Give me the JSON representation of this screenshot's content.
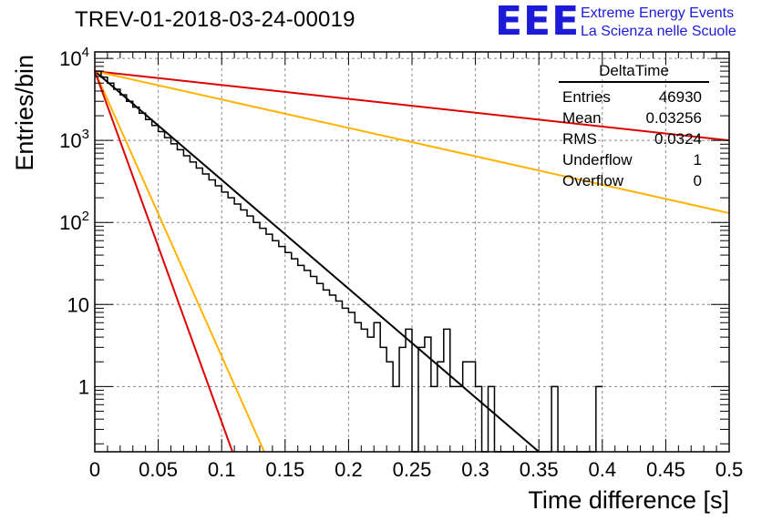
{
  "header": {
    "title": "TREV-01-2018-03-24-00019",
    "logo_text": "EEE",
    "logo_line1": "Extreme Energy Events",
    "logo_line2": "La Scienza nelle Scuole",
    "logo_color": "#1b1bd8"
  },
  "stats": {
    "name": "DeltaTime",
    "rows": [
      {
        "label": "Entries",
        "value": "46930"
      },
      {
        "label": "Mean",
        "value": "0.03256"
      },
      {
        "label": "RMS",
        "value": "0.0324"
      },
      {
        "label": "Underflow",
        "value": "1"
      },
      {
        "label": "Overflow",
        "value": "0"
      }
    ]
  },
  "chart_data": {
    "type": "line",
    "xlabel": "Time difference [s]",
    "ylabel": "Entries/bin",
    "xlim": [
      0,
      0.5
    ],
    "ylim": [
      0.16,
      12000
    ],
    "y_scale": "log",
    "grid": true,
    "x_ticks": [
      "0",
      "0.05",
      "0.1",
      "0.15",
      "0.2",
      "0.25",
      "0.3",
      "0.35",
      "0.4",
      "0.45",
      "0.5"
    ],
    "y_ticks": [
      {
        "value": 1,
        "label": "1"
      },
      {
        "value": 10,
        "label": "10"
      },
      {
        "value": 100,
        "label": "10^2"
      },
      {
        "value": 1000,
        "label": "10^3"
      },
      {
        "value": 10000,
        "label": "10^4"
      }
    ],
    "histogram": {
      "color": "#000000",
      "bin_width": 0.005,
      "values": [
        7000,
        5900,
        5000,
        4200,
        3600,
        3000,
        2550,
        2150,
        1800,
        1520,
        1280,
        1080,
        910,
        770,
        650,
        545,
        460,
        390,
        330,
        280,
        235,
        200,
        168,
        142,
        120,
        100,
        85,
        72,
        60,
        51,
        43,
        36,
        30,
        26,
        22,
        18,
        15,
        13,
        11,
        9,
        8,
        6,
        5,
        4,
        6,
        3,
        2,
        1,
        3,
        5,
        0,
        3,
        4,
        1,
        2,
        5,
        1,
        1,
        2,
        2,
        1,
        0,
        1,
        0,
        0,
        0,
        0,
        0,
        0,
        0,
        0,
        0,
        1,
        0,
        0,
        0,
        0,
        0,
        0,
        1
      ]
    },
    "fits": [
      {
        "color": "#000000",
        "x0": 0,
        "y0": 7000,
        "x1": 0.35,
        "y1": 0.16
      },
      {
        "color": "#dd0000",
        "x0": 0,
        "y0": 7000,
        "x1": 0.5,
        "y1": 1000
      },
      {
        "color": "#ffb300",
        "x0": 0,
        "y0": 7000,
        "x1": 0.5,
        "y1": 130
      },
      {
        "color": "#ffb300",
        "x0": 0,
        "y0": 7000,
        "x1": 0.1335,
        "y1": 0.16
      },
      {
        "color": "#dd0000",
        "x0": 0,
        "y0": 7000,
        "x1": 0.1085,
        "y1": 0.16
      }
    ]
  }
}
